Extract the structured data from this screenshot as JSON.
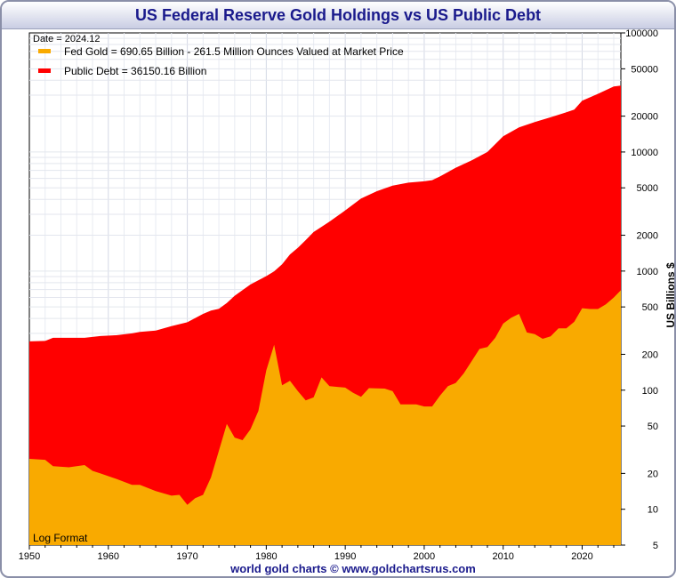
{
  "chart_data": {
    "type": "area",
    "title": "US Federal Reserve Gold Holdings vs US Public Debt",
    "date_label": "Date = 2024.12",
    "scale_note": "Log Format",
    "ylabel": "US Billions $",
    "footer": "world gold charts © www.goldchartsrus.com",
    "y_scale": "log",
    "ylim": [
      5,
      100000
    ],
    "xlim": [
      1950,
      2024.9
    ],
    "grid": true,
    "legend_position": "top-left",
    "x_ticks": [
      "1950",
      "1960",
      "1970",
      "1980",
      "1990",
      "2000",
      "2010",
      "2020"
    ],
    "y_ticks": [
      "5",
      "10",
      "20",
      "50",
      "100",
      "200",
      "500",
      "1000",
      "2000",
      "5000",
      "10000",
      "20000",
      "50000",
      "100000"
    ],
    "series": [
      {
        "name": "Public Debt = 36150.16 Billion",
        "color": "#ff0000",
        "x": [
          1950,
          1952,
          1953,
          1955,
          1957,
          1958,
          1959,
          1961,
          1963,
          1964,
          1966,
          1968,
          1970,
          1972,
          1973,
          1974,
          1975,
          1976,
          1978,
          1980,
          1981,
          1982,
          1983,
          1984,
          1985,
          1986,
          1988,
          1990,
          1992,
          1994,
          1996,
          1998,
          2000,
          2001,
          2002,
          2004,
          2006,
          2008,
          2010,
          2012,
          2014,
          2016,
          2018,
          2019,
          2020,
          2022,
          2024,
          2024.9
        ],
        "values": [
          257,
          259,
          275,
          275,
          275,
          280,
          285,
          289,
          300,
          308,
          316,
          345,
          372,
          437,
          466,
          482,
          540,
          620,
          772,
          907,
          995,
          1140,
          1380,
          1570,
          1820,
          2130,
          2600,
          3230,
          4060,
          4690,
          5220,
          5530,
          5670,
          5800,
          6230,
          7380,
          8500,
          10000,
          13560,
          16070,
          17820,
          19570,
          21520,
          22720,
          27000,
          30800,
          35460,
          36150
        ]
      },
      {
        "name": "Fed Gold = 690.65 Billion - 261.5 Million Ounces Valued at Market Price",
        "color": "#f9aa00",
        "x": [
          1950,
          1952,
          1953,
          1955,
          1957,
          1958,
          1959,
          1961,
          1963,
          1964,
          1966,
          1968,
          1969,
          1970,
          1971,
          1972,
          1973,
          1974,
          1975,
          1976,
          1977,
          1978,
          1979,
          1980,
          1981,
          1982,
          1983,
          1984,
          1985,
          1986,
          1987,
          1988,
          1990,
          1991,
          1992,
          1993,
          1995,
          1996,
          1997,
          1999,
          2000,
          2001,
          2002,
          2003,
          2004,
          2005,
          2006,
          2007,
          2008,
          2009,
          2010,
          2011,
          2012,
          2013,
          2014,
          2015,
          2016,
          2017,
          2018,
          2019,
          2020,
          2021,
          2022,
          2023,
          2024,
          2024.9
        ],
        "values": [
          26.5,
          26,
          23,
          22.5,
          23.5,
          21,
          20,
          18,
          16,
          16,
          14.2,
          13,
          13.2,
          10.9,
          12.4,
          13.2,
          18.5,
          31,
          52,
          40,
          38,
          47,
          67,
          147,
          240,
          110,
          120,
          98,
          82,
          87,
          128,
          108,
          105,
          95,
          88,
          104,
          103,
          98,
          76,
          76,
          73,
          73,
          90,
          108,
          115,
          138,
          175,
          222,
          230,
          275,
          362,
          405,
          437,
          305,
          295,
          270,
          283,
          330,
          330,
          375,
          488,
          480,
          480,
          525,
          600,
          690.65
        ]
      }
    ]
  }
}
